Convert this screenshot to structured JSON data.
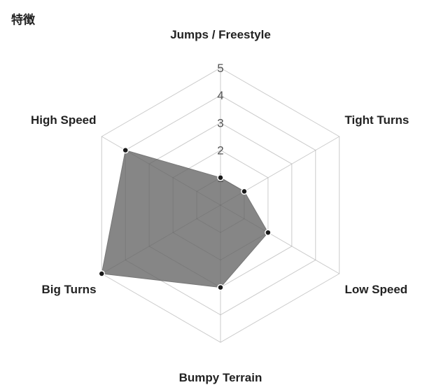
{
  "title": "特徴",
  "chart_data": {
    "type": "radar",
    "title": "特徴",
    "axes": [
      "Jumps / Freestyle",
      "Tight Turns",
      "Low Speed",
      "Bumpy Terrain",
      "Big Turns",
      "High Speed"
    ],
    "values": [
      1,
      1,
      2,
      3,
      5,
      4
    ],
    "range": [
      0,
      5
    ],
    "ticks": [
      "1",
      "2",
      "3",
      "4",
      "5"
    ],
    "grid": true,
    "fill_color": "#808080",
    "point_color": "#1a1a1a",
    "grid_color": "#dddddd"
  }
}
